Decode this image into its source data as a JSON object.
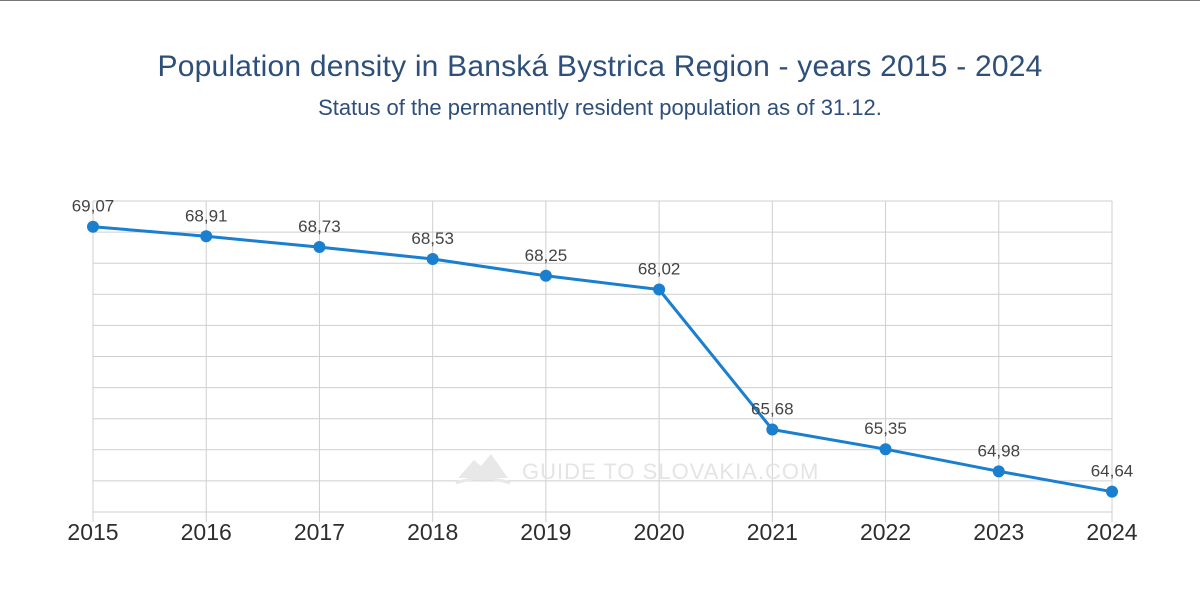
{
  "title": "Population density in Banská Bystrica Region - years 2015 - 2024",
  "subtitle": "Status of the permanently resident population as of 31.12.",
  "watermark": "GUIDE TO SLOVAKIA.COM",
  "colors": {
    "series": "#1a7fcf",
    "title": "#2d4f7a",
    "grid": "#cfcfcf"
  },
  "chart_data": {
    "type": "line",
    "x": [
      "2015",
      "2016",
      "2017",
      "2018",
      "2019",
      "2020",
      "2021",
      "2022",
      "2023",
      "2024"
    ],
    "series": [
      {
        "values": [
          69.07,
          68.91,
          68.73,
          68.53,
          68.25,
          68.02,
          65.68,
          65.35,
          64.98,
          64.64
        ]
      }
    ],
    "data_labels": [
      "69,07",
      "68,91",
      "68,73",
      "68,53",
      "68,25",
      "68,02",
      "65,68",
      "65,35",
      "64,98",
      "64,64"
    ],
    "ylim": [
      64.3,
      69.5
    ],
    "grid": true,
    "legend": "none"
  }
}
